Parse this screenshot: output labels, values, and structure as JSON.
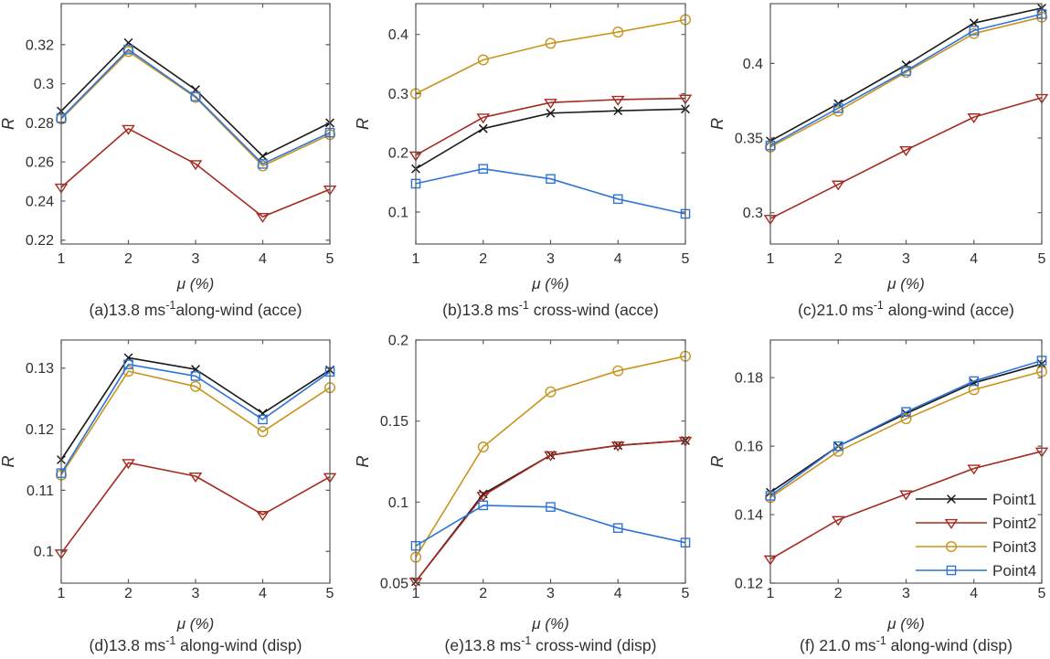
{
  "figure": {
    "xlabel": "μ (%)",
    "ylabel": "R",
    "x_values": [
      1,
      2,
      3,
      4,
      5
    ],
    "x_tick_labels": [
      "1",
      "2",
      "3",
      "4",
      "5"
    ],
    "series_meta": [
      {
        "name": "Point1",
        "color": "#1a1a1a",
        "marker": "x"
      },
      {
        "name": "Point2",
        "color": "#a52a1f",
        "marker": "triangle-down"
      },
      {
        "name": "Point3",
        "color": "#c9941e",
        "marker": "circle"
      },
      {
        "name": "Point4",
        "color": "#2e74d9",
        "marker": "square"
      }
    ],
    "legend": {
      "location": "inside subplot (f), bottom-right",
      "entries": [
        "Point1",
        "Point2",
        "Point3",
        "Point4"
      ]
    },
    "axis_color": "#5a5a5a",
    "text_color": "#303030"
  },
  "chart_data": [
    {
      "type": "line",
      "id": "a",
      "caption_pre": "(a)13.8 ms",
      "caption_sup": "-1",
      "caption_post": "along-wind (acce)",
      "xlabel": "μ (%)",
      "ylabel": "R",
      "ylim": [
        0.218,
        0.341
      ],
      "yticks": [
        {
          "v": 0.22,
          "label": "0.22"
        },
        {
          "v": 0.24,
          "label": "0.24"
        },
        {
          "v": 0.26,
          "label": "0.26"
        },
        {
          "v": 0.28,
          "label": "0.28"
        },
        {
          "v": 0.3,
          "label": "0.3"
        },
        {
          "v": 0.32,
          "label": "0.32"
        }
      ],
      "series": [
        {
          "name": "Point1",
          "values": [
            0.286,
            0.321,
            0.297,
            0.263,
            0.28
          ]
        },
        {
          "name": "Point2",
          "values": [
            0.247,
            0.277,
            0.259,
            0.232,
            0.246
          ]
        },
        {
          "name": "Point3",
          "values": [
            0.282,
            0.3165,
            0.293,
            0.258,
            0.274
          ]
        },
        {
          "name": "Point4",
          "values": [
            0.2825,
            0.3175,
            0.2935,
            0.259,
            0.275
          ]
        }
      ]
    },
    {
      "type": "line",
      "id": "b",
      "caption_pre": "(b)13.8 ms",
      "caption_sup": "-1",
      "caption_post": " cross-wind (acce)",
      "xlabel": "μ (%)",
      "ylabel": "R",
      "ylim": [
        0.046,
        0.452
      ],
      "yticks": [
        {
          "v": 0.1,
          "label": "0.1"
        },
        {
          "v": 0.2,
          "label": "0.2"
        },
        {
          "v": 0.3,
          "label": "0.3"
        },
        {
          "v": 0.4,
          "label": "0.4"
        }
      ],
      "series": [
        {
          "name": "Point1",
          "values": [
            0.173,
            0.241,
            0.267,
            0.271,
            0.274
          ]
        },
        {
          "name": "Point2",
          "values": [
            0.196,
            0.26,
            0.285,
            0.29,
            0.292
          ]
        },
        {
          "name": "Point3",
          "values": [
            0.3,
            0.357,
            0.385,
            0.404,
            0.425
          ]
        },
        {
          "name": "Point4",
          "values": [
            0.148,
            0.173,
            0.156,
            0.122,
            0.097
          ]
        }
      ]
    },
    {
      "type": "line",
      "id": "c",
      "caption_pre": "(c)21.0 ms",
      "caption_sup": "-1",
      "caption_post": " along-wind (acce)",
      "xlabel": "μ (%)",
      "ylabel": "R",
      "ylim": [
        0.279,
        0.44
      ],
      "yticks": [
        {
          "v": 0.3,
          "label": "0.3"
        },
        {
          "v": 0.35,
          "label": "0.35"
        },
        {
          "v": 0.4,
          "label": "0.4"
        }
      ],
      "series": [
        {
          "name": "Point1",
          "values": [
            0.348,
            0.373,
            0.399,
            0.427,
            0.437
          ]
        },
        {
          "name": "Point2",
          "values": [
            0.296,
            0.319,
            0.342,
            0.364,
            0.377
          ]
        },
        {
          "name": "Point3",
          "values": [
            0.344,
            0.368,
            0.394,
            0.42,
            0.431
          ]
        },
        {
          "name": "Point4",
          "values": [
            0.345,
            0.37,
            0.395,
            0.422,
            0.433
          ]
        }
      ]
    },
    {
      "type": "line",
      "id": "d",
      "caption_pre": "(d)13.8 ms",
      "caption_sup": "-1",
      "caption_post": " along-wind (disp)",
      "xlabel": "μ (%)",
      "ylabel": "R",
      "ylim": [
        0.0948,
        0.1346
      ],
      "yticks": [
        {
          "v": 0.1,
          "label": "0.1"
        },
        {
          "v": 0.11,
          "label": "0.11"
        },
        {
          "v": 0.12,
          "label": "0.12"
        },
        {
          "v": 0.13,
          "label": "0.13"
        }
      ],
      "series": [
        {
          "name": "Point1",
          "values": [
            0.115,
            0.1317,
            0.1298,
            0.1226,
            0.1297
          ]
        },
        {
          "name": "Point2",
          "values": [
            0.0997,
            0.1145,
            0.1123,
            0.106,
            0.1122
          ]
        },
        {
          "name": "Point3",
          "values": [
            0.1125,
            0.1295,
            0.127,
            0.1196,
            0.1268
          ]
        },
        {
          "name": "Point4",
          "values": [
            0.1128,
            0.1306,
            0.1287,
            0.1216,
            0.1294
          ]
        }
      ]
    },
    {
      "type": "line",
      "id": "e",
      "caption_pre": "(e)13.8 ms",
      "caption_sup": "-1",
      "caption_post": " cross-wind (disp)",
      "xlabel": "μ (%)",
      "ylabel": "R",
      "ylim": [
        0.05,
        0.2
      ],
      "yticks": [
        {
          "v": 0.05,
          "label": "0.05"
        },
        {
          "v": 0.1,
          "label": "0.1"
        },
        {
          "v": 0.15,
          "label": "0.15"
        },
        {
          "v": 0.2,
          "label": "0.2"
        }
      ],
      "series": [
        {
          "name": "Point1",
          "values": [
            0.051,
            0.105,
            0.129,
            0.135,
            0.138
          ]
        },
        {
          "name": "Point2",
          "values": [
            0.051,
            0.104,
            0.129,
            0.135,
            0.138
          ]
        },
        {
          "name": "Point3",
          "values": [
            0.066,
            0.134,
            0.168,
            0.181,
            0.19
          ]
        },
        {
          "name": "Point4",
          "values": [
            0.073,
            0.098,
            0.097,
            0.084,
            0.075
          ]
        }
      ]
    },
    {
      "type": "line",
      "id": "f",
      "caption_pre": "(f) 21.0 ms",
      "caption_sup": "-1",
      "caption_post": " along-wind (disp)",
      "xlabel": "μ (%)",
      "ylabel": "R",
      "ylim": [
        0.12,
        0.191
      ],
      "yticks": [
        {
          "v": 0.12,
          "label": "0.12"
        },
        {
          "v": 0.14,
          "label": "0.14"
        },
        {
          "v": 0.16,
          "label": "0.16"
        },
        {
          "v": 0.18,
          "label": "0.18"
        }
      ],
      "series": [
        {
          "name": "Point1",
          "values": [
            0.1465,
            0.16,
            0.1695,
            0.1785,
            0.184
          ]
        },
        {
          "name": "Point2",
          "values": [
            0.127,
            0.1385,
            0.146,
            0.1535,
            0.1585
          ]
        },
        {
          "name": "Point3",
          "values": [
            0.145,
            0.1585,
            0.168,
            0.1765,
            0.1818
          ]
        },
        {
          "name": "Point4",
          "values": [
            0.1455,
            0.16,
            0.17,
            0.179,
            0.185
          ]
        }
      ],
      "has_legend": true
    }
  ]
}
